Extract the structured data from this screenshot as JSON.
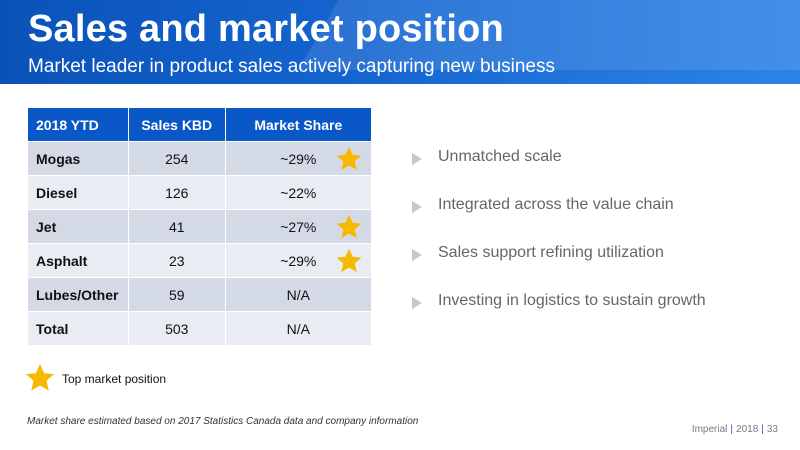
{
  "header": {
    "title": "Sales and market position",
    "subtitle": "Market leader in product sales actively capturing new business"
  },
  "table": {
    "headers": [
      "2018 YTD",
      "Sales KBD",
      "Market Share"
    ],
    "rows": [
      {
        "product": "Mogas",
        "sales": "254",
        "share": "~29%",
        "star": true
      },
      {
        "product": "Diesel",
        "sales": "126",
        "share": "~22%",
        "star": false
      },
      {
        "product": "Jet",
        "sales": "41",
        "share": "~27%",
        "star": true
      },
      {
        "product": "Asphalt",
        "sales": "23",
        "share": "~29%",
        "star": true
      },
      {
        "product": "Lubes/Other",
        "sales": "59",
        "share": "N/A",
        "star": false
      },
      {
        "product": "Total",
        "sales": "503",
        "share": "N/A",
        "star": false
      }
    ]
  },
  "legend": {
    "label": "Top market position",
    "icon": "star-icon",
    "color": "#f5b900"
  },
  "bullets": [
    "Unmatched scale",
    "Integrated across the value chain",
    "Sales support refining utilization",
    "Investing in logistics to sustain growth"
  ],
  "footnote": "Market share estimated based on 2017 Statistics Canada data and company information",
  "footer": {
    "company": "Imperial",
    "year": "2018",
    "page": "33"
  },
  "colors": {
    "header_blue": "#0a58c7",
    "star": "#f5b900"
  }
}
